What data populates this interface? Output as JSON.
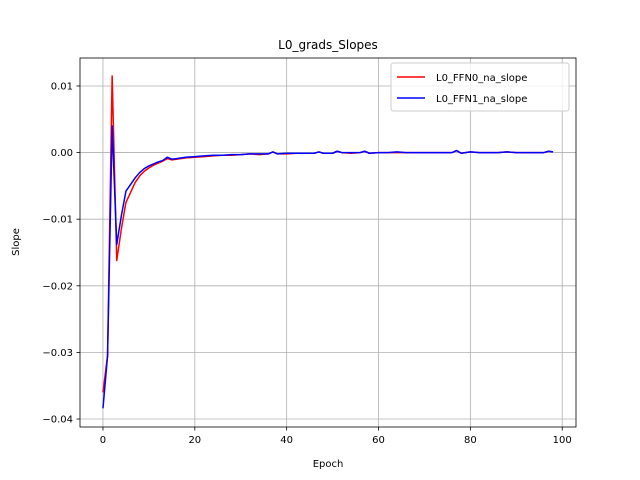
{
  "chart_data": {
    "type": "line",
    "title": "L0_grads_Slopes",
    "xlabel": "Epoch",
    "ylabel": "Slope",
    "xlim": [
      -5,
      103
    ],
    "ylim": [
      -0.0412,
      0.0142
    ],
    "xticks": [
      0,
      20,
      40,
      60,
      80,
      100
    ],
    "xtick_labels": [
      "0",
      "20",
      "40",
      "60",
      "80",
      "100"
    ],
    "yticks": [
      0.01,
      0.0,
      -0.01,
      -0.02,
      -0.03,
      -0.04
    ],
    "ytick_labels": [
      "0.01",
      "0.00",
      "−0.01",
      "−0.02",
      "−0.03",
      "−0.04"
    ],
    "grid": true,
    "legend_position": "top-right",
    "series": [
      {
        "name": "L0_FFN0_na_slope",
        "color": "#ff0000",
        "x": [
          0,
          1,
          2,
          3,
          4,
          5,
          6,
          7,
          8,
          9,
          10,
          11,
          12,
          13,
          14,
          15,
          16,
          18,
          20,
          22,
          24,
          26,
          28,
          30,
          32,
          34,
          36,
          37,
          38,
          40,
          42,
          44,
          46,
          47,
          48,
          50,
          51,
          52,
          54,
          56,
          57,
          58,
          60,
          62,
          64,
          66,
          68,
          70,
          72,
          74,
          76,
          77,
          78,
          80,
          82,
          84,
          86,
          88,
          90,
          92,
          94,
          96,
          97,
          98
        ],
        "y": [
          -0.036,
          -0.0305,
          0.0115,
          -0.0162,
          -0.0115,
          -0.0075,
          -0.006,
          -0.0045,
          -0.0035,
          -0.0028,
          -0.0023,
          -0.0019,
          -0.0016,
          -0.0013,
          -0.0009,
          -0.0011,
          -0.001,
          -0.0008,
          -0.0007,
          -0.0006,
          -0.0005,
          -0.0004,
          -0.0004,
          -0.0003,
          -0.0002,
          -0.0003,
          -0.0002,
          0.0001,
          -0.0002,
          -0.0002,
          -0.0001,
          -0.0001,
          -0.0001,
          0.0001,
          -0.0001,
          -0.0001,
          0.0002,
          0.0,
          -0.0001,
          0.0,
          0.0002,
          -0.0001,
          0.0,
          0.0,
          0.0,
          0.0,
          0.0,
          0.0,
          0.0,
          0.0,
          0.0,
          0.0003,
          -0.0001,
          0.0001,
          0.0,
          0.0,
          0.0,
          0.0001,
          0.0,
          0.0,
          0.0,
          0.0,
          0.0002,
          0.0001
        ]
      },
      {
        "name": "L0_FFN1_na_slope",
        "color": "#0000ff",
        "x": [
          0,
          1,
          2,
          3,
          4,
          5,
          6,
          7,
          8,
          9,
          10,
          11,
          12,
          13,
          14,
          15,
          16,
          18,
          20,
          22,
          24,
          26,
          28,
          30,
          32,
          34,
          36,
          37,
          38,
          40,
          42,
          44,
          46,
          47,
          48,
          50,
          51,
          52,
          54,
          56,
          57,
          58,
          60,
          62,
          64,
          66,
          68,
          70,
          72,
          74,
          76,
          77,
          78,
          80,
          82,
          84,
          86,
          88,
          90,
          92,
          94,
          96,
          97,
          98
        ],
        "y": [
          -0.0384,
          -0.0305,
          0.004,
          -0.0138,
          -0.0095,
          -0.0058,
          -0.0048,
          -0.0038,
          -0.003,
          -0.0024,
          -0.002,
          -0.0017,
          -0.0014,
          -0.0012,
          -0.0007,
          -0.001,
          -0.0009,
          -0.0007,
          -0.0006,
          -0.0005,
          -0.0004,
          -0.0004,
          -0.0003,
          -0.0003,
          -0.0002,
          -0.0002,
          -0.0002,
          0.0001,
          -0.0002,
          -0.0001,
          -0.0001,
          -0.0001,
          -0.0001,
          0.0001,
          -0.0001,
          -0.0001,
          0.0002,
          0.0,
          0.0,
          0.0,
          0.0002,
          -0.0001,
          0.0,
          0.0,
          0.0001,
          0.0,
          0.0,
          0.0,
          0.0,
          0.0,
          0.0,
          0.0003,
          -0.0001,
          0.0001,
          0.0,
          0.0,
          0.0,
          0.0001,
          0.0,
          0.0,
          0.0,
          0.0,
          0.0002,
          0.0001
        ]
      }
    ]
  }
}
